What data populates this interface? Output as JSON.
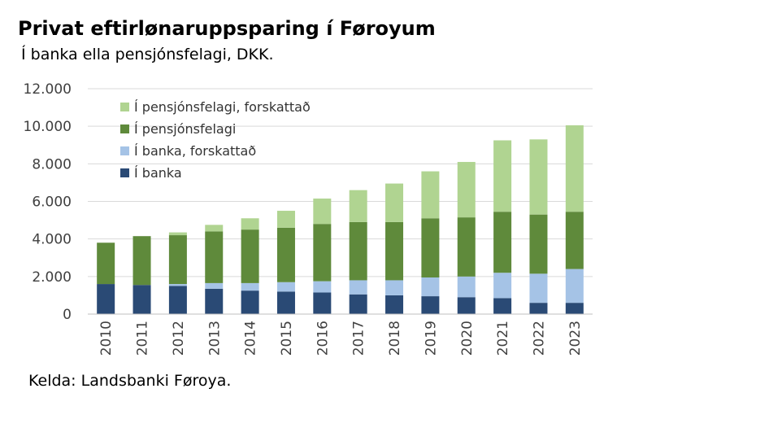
{
  "header": {
    "title": "Privat eftirlønaruppsparing í Føroyum",
    "subtitle": "Í banka ella pensjónsfelagi, DKK."
  },
  "footer": {
    "source": "Kelda: Landsbanki Føroya."
  },
  "colors": {
    "i_banka": "#2a4a75",
    "i_banka_forskattad": "#a5c3e6",
    "i_pensjonsfelagi": "#5f8a3b",
    "i_pensjonsfelagi_forskattad": "#b0d491",
    "grid": "#d9d9d9",
    "axis": "#bfbfbf"
  },
  "chart_data": {
    "type": "bar",
    "stacked": true,
    "categories": [
      "2010",
      "2011",
      "2012",
      "2013",
      "2014",
      "2015",
      "2016",
      "2017",
      "2018",
      "2019",
      "2020",
      "2021",
      "2022",
      "2023"
    ],
    "series": [
      {
        "name": "Í banka",
        "color_key": "i_banka",
        "values": [
          1600,
          1550,
          1500,
          1350,
          1250,
          1200,
          1150,
          1050,
          1000,
          950,
          900,
          850,
          600,
          600
        ]
      },
      {
        "name": "Í banka, forskattað",
        "color_key": "i_banka_forskattad",
        "values": [
          0,
          0,
          100,
          300,
          400,
          500,
          600,
          750,
          800,
          1000,
          1100,
          1350,
          1550,
          1800
        ]
      },
      {
        "name": "Í pensjónsfelagi",
        "color_key": "i_pensjonsfelagi",
        "values": [
          2200,
          2600,
          2600,
          2750,
          2850,
          2900,
          3050,
          3100,
          3100,
          3150,
          3150,
          3250,
          3150,
          3050
        ]
      },
      {
        "name": "Í pensjónsfelagi, forskattað",
        "color_key": "i_pensjonsfelagi_forskattad",
        "values": [
          0,
          0,
          150,
          350,
          600,
          900,
          1350,
          1700,
          2050,
          2500,
          2950,
          3800,
          4000,
          4600
        ]
      }
    ],
    "yticks": [
      "0",
      "2.000",
      "4.000",
      "6.000",
      "8.000",
      "10.000",
      "12.000"
    ],
    "ylim": [
      0,
      12000
    ],
    "grid": true,
    "legend_position": "top-left",
    "legend_order": [
      "Í pensjónsfelagi, forskattað",
      "Í pensjónsfelagi",
      "Í banka, forskattað",
      "Í banka"
    ]
  }
}
